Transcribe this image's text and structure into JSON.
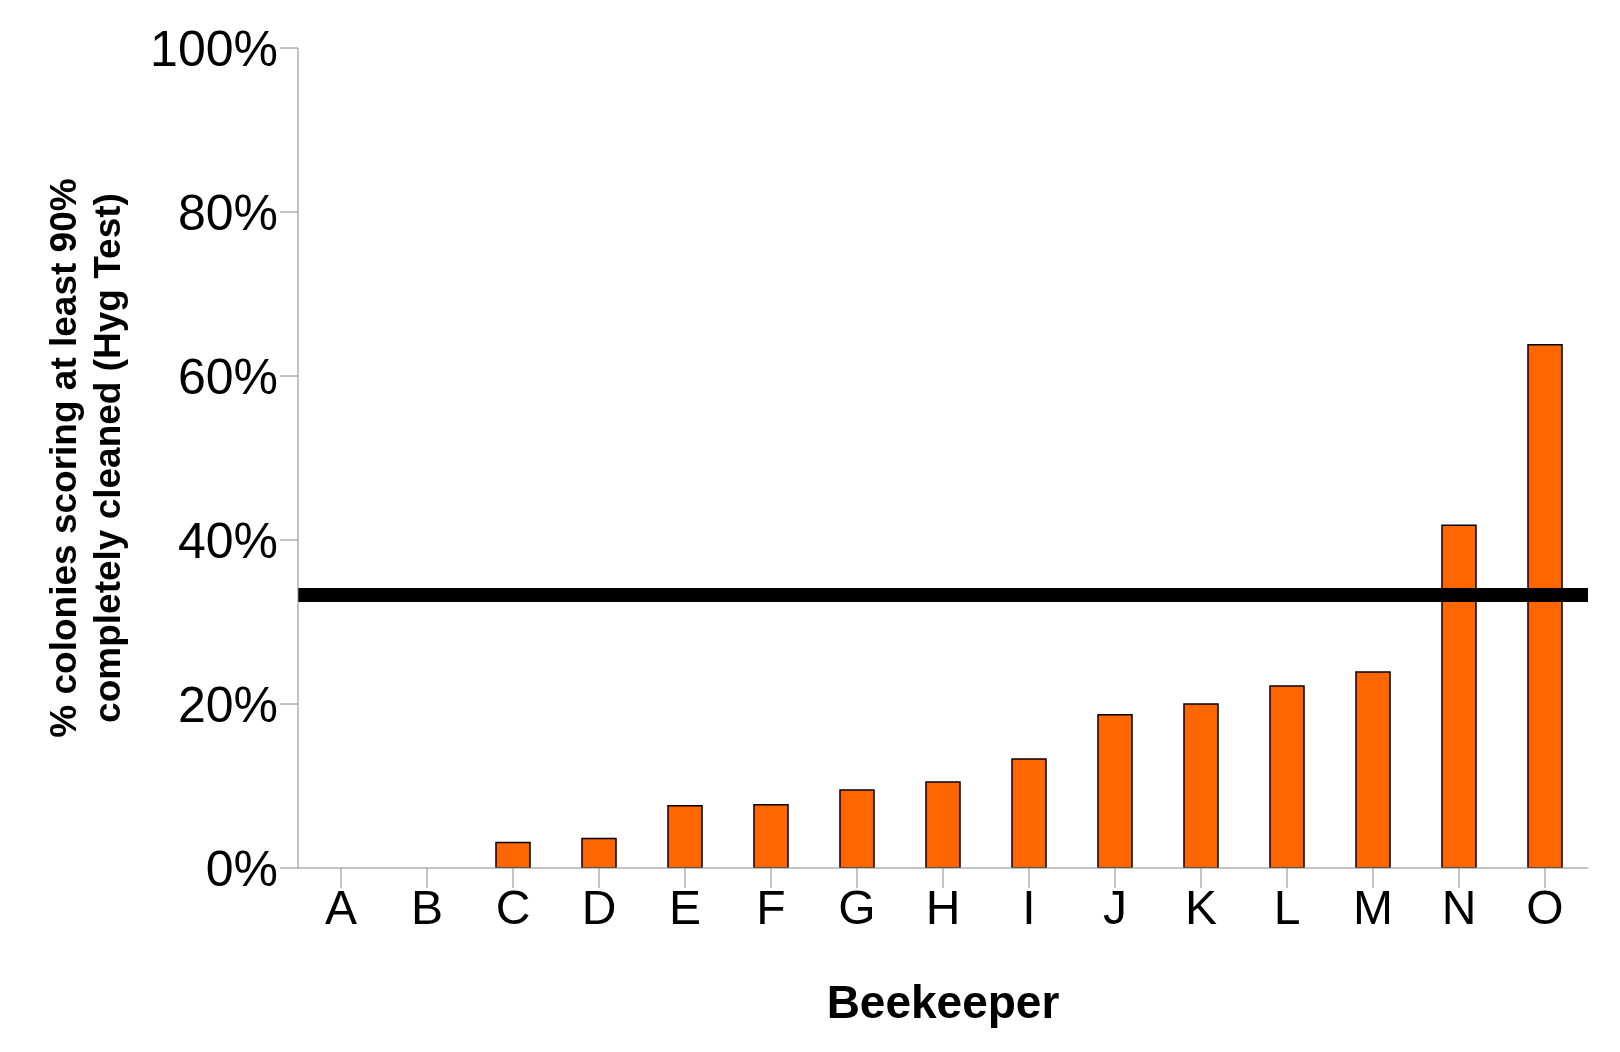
{
  "chart_data": {
    "type": "bar",
    "xlabel": "Beekeeper",
    "ylabel": "% colonies scoring at least 90%\ncompletely cleaned (Hyg Test)",
    "categories": [
      "A",
      "B",
      "C",
      "D",
      "E",
      "F",
      "G",
      "H",
      "I",
      "J",
      "K",
      "L",
      "M",
      "N",
      "O"
    ],
    "values": [
      0,
      0,
      3.1,
      3.6,
      7.6,
      7.7,
      9.5,
      10.5,
      13.3,
      18.7,
      20.0,
      22.2,
      23.9,
      41.8,
      63.8
    ],
    "color": "#ff6600",
    "ylim": [
      0,
      100
    ],
    "yticks": [
      {
        "value": 0,
        "label": "0%"
      },
      {
        "value": 20,
        "label": "20%"
      },
      {
        "value": 40,
        "label": "40%"
      },
      {
        "value": 60,
        "label": "60%"
      },
      {
        "value": 80,
        "label": "80%"
      },
      {
        "value": 100,
        "label": "100%"
      }
    ],
    "ref_lines": [
      {
        "axis": "y",
        "value": 33.3,
        "label": null,
        "color": "#000000"
      }
    ],
    "grid": false,
    "legend": false
  }
}
